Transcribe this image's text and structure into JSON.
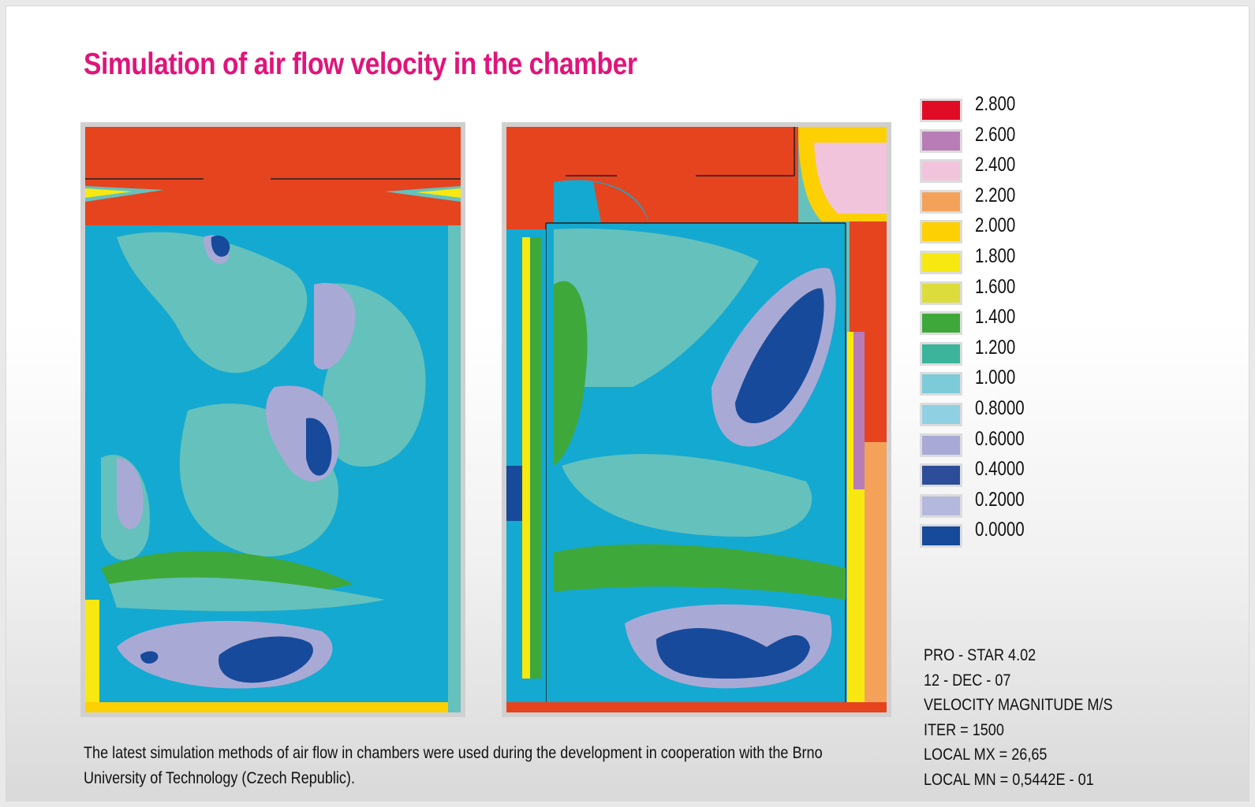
{
  "title": "Simulation of air flow velocity in the chamber",
  "legend": {
    "items": [
      {
        "label": "2.800",
        "color": "#e00b25"
      },
      {
        "label": "2.600",
        "color": "#b87db6"
      },
      {
        "label": "2.400",
        "color": "#f1c4dc"
      },
      {
        "label": "2.200",
        "color": "#f4a25a"
      },
      {
        "label": "2.000",
        "color": "#fdd004"
      },
      {
        "label": "1.800",
        "color": "#f7e812"
      },
      {
        "label": "1.600",
        "color": "#dcdd3c"
      },
      {
        "label": "1.400",
        "color": "#3fa83a"
      },
      {
        "label": "1.200",
        "color": "#3bb49b"
      },
      {
        "label": "1.000",
        "color": "#7dcad8"
      },
      {
        "label": "0.8000",
        "color": "#8fd0e2"
      },
      {
        "label": "0.6000",
        "color": "#a9a9d6"
      },
      {
        "label": "0.4000",
        "color": "#2d4d9a"
      },
      {
        "label": "0.2000",
        "color": "#b4b8dc"
      },
      {
        "label": "0.0000",
        "color": "#174a9a"
      }
    ]
  },
  "info": {
    "lines": [
      "PRO - STAR 4.02",
      "12 - DEC - 07",
      "VELOCITY MAGNITUDE M/S",
      "ITER = 1500",
      "LOCAL MX = 26,65",
      "LOCAL MN = 0,5442E - 01"
    ]
  },
  "caption": "The latest simulation methods of air flow in chambers were used during the development in cooperation with the Brno University of Technology (Czech Republic).",
  "colors": {
    "title": "#e0147a",
    "inlet": "#e5441f",
    "low": "#174a9a",
    "mid_low": "#a9a9d6",
    "mid": "#14a9d0",
    "teal": "#65c1bc",
    "green": "#3fa83a",
    "yellow": "#f7e812"
  }
}
